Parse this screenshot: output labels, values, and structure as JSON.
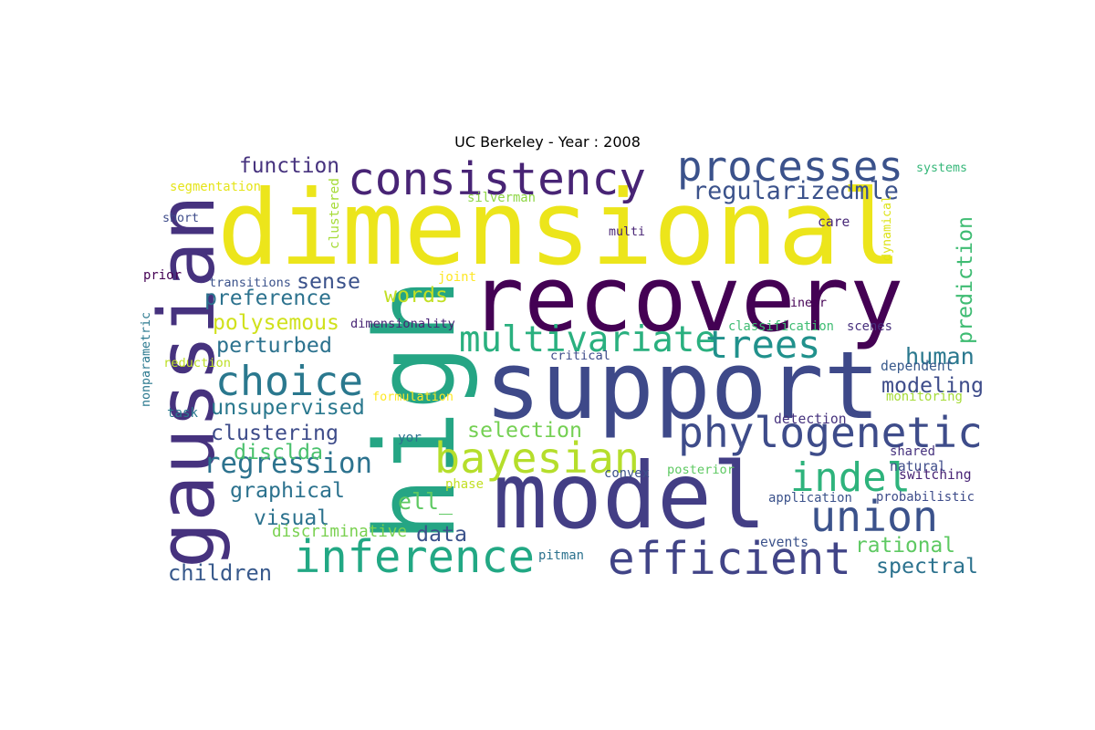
{
  "title": "UC Berkeley - Year : 2008",
  "colors": {
    "background": "#ffffff",
    "palette": [
      "#440154",
      "#3b528b",
      "#21918c",
      "#5ec962",
      "#fde725"
    ]
  },
  "words": [
    {
      "text": "dimensional",
      "color": "#ece51b"
    },
    {
      "text": "recovery",
      "color": "#440154"
    },
    {
      "text": "support",
      "color": "#3e4989"
    },
    {
      "text": "model",
      "color": "#433e85"
    },
    {
      "text": "high",
      "color": "#25a584"
    },
    {
      "text": "gaussian",
      "color": "#46327e"
    },
    {
      "text": "consistency",
      "color": "#482475"
    },
    {
      "text": "processes",
      "color": "#3b528b"
    },
    {
      "text": "efficient",
      "color": "#414487"
    },
    {
      "text": "inference",
      "color": "#22a884"
    },
    {
      "text": "phylogenetic",
      "color": "#3e4c8a"
    },
    {
      "text": "bayesian",
      "color": "#b5de2b"
    },
    {
      "text": "choice",
      "color": "#2a788e"
    },
    {
      "text": "union",
      "color": "#3b528b"
    },
    {
      "text": "multivariate",
      "color": "#2ab07f"
    },
    {
      "text": "trees",
      "color": "#21918c"
    },
    {
      "text": "indel",
      "color": "#2eb37c"
    },
    {
      "text": "regression",
      "color": "#2c728e"
    },
    {
      "text": "regularizedmle",
      "color": "#3b528b"
    },
    {
      "text": "function",
      "color": "#46327e"
    },
    {
      "text": "preference",
      "color": "#2c728e"
    },
    {
      "text": "unsupervised",
      "color": "#2a788e"
    },
    {
      "text": "clustering",
      "color": "#3e4c8a"
    },
    {
      "text": "perturbed",
      "color": "#2c728e"
    },
    {
      "text": "polysemous",
      "color": "#d0e11c"
    },
    {
      "text": "sense",
      "color": "#3b528b"
    },
    {
      "text": "words",
      "color": "#c2df23"
    },
    {
      "text": "human",
      "color": "#2a788e"
    },
    {
      "text": "modeling",
      "color": "#3e4c8a"
    },
    {
      "text": "rational",
      "color": "#5ec962"
    },
    {
      "text": "spectral",
      "color": "#2c728e"
    },
    {
      "text": "prediction",
      "color": "#3fbc73"
    },
    {
      "text": "selection",
      "color": "#75d054"
    },
    {
      "text": "graphical",
      "color": "#2c728e"
    },
    {
      "text": "children",
      "color": "#38598c"
    },
    {
      "text": "disclda",
      "color": "#4ac16d"
    },
    {
      "text": "visual",
      "color": "#2c728e"
    },
    {
      "text": "data",
      "color": "#3b528b"
    },
    {
      "text": "ell_",
      "color": "#5ec962"
    },
    {
      "text": "discriminative",
      "color": "#7ad151"
    },
    {
      "text": "segmentation",
      "color": "#e5e419"
    },
    {
      "text": "short",
      "color": "#3e4c8a"
    },
    {
      "text": "clustered",
      "color": "#a5db36"
    },
    {
      "text": "silverman",
      "color": "#8ed645"
    },
    {
      "text": "multi",
      "color": "#482475"
    },
    {
      "text": "care",
      "color": "#482878"
    },
    {
      "text": "dynamical",
      "color": "#dde318"
    },
    {
      "text": "systems",
      "color": "#35b779"
    },
    {
      "text": "prior",
      "color": "#440154"
    },
    {
      "text": "transitions",
      "color": "#3b528b"
    },
    {
      "text": "joint",
      "color": "#fde725"
    },
    {
      "text": "dimensionality",
      "color": "#482475"
    },
    {
      "text": "linear",
      "color": "#440154"
    },
    {
      "text": "classification",
      "color": "#3fbc73"
    },
    {
      "text": "scenes",
      "color": "#472f7d"
    },
    {
      "text": "nonparametric",
      "color": "#2a788e"
    },
    {
      "text": "reduction",
      "color": "#bddf26"
    },
    {
      "text": "critical",
      "color": "#3e4c8a"
    },
    {
      "text": "dependent",
      "color": "#38598c"
    },
    {
      "text": "formulation",
      "color": "#fde725"
    },
    {
      "text": "monitoring",
      "color": "#a5db36"
    },
    {
      "text": "task",
      "color": "#2a788e"
    },
    {
      "text": "detection",
      "color": "#46327e"
    },
    {
      "text": "yor",
      "color": "#2c728e"
    },
    {
      "text": "shared",
      "color": "#46327e"
    },
    {
      "text": "natural",
      "color": "#3e4c8a"
    },
    {
      "text": "phase",
      "color": "#c2df23"
    },
    {
      "text": "convex",
      "color": "#3b528b"
    },
    {
      "text": "posterior",
      "color": "#5ec962"
    },
    {
      "text": "switching",
      "color": "#482475"
    },
    {
      "text": "application",
      "color": "#3b528b"
    },
    {
      "text": "probabilistic",
      "color": "#3e4c8a"
    },
    {
      "text": "events",
      "color": "#3b528b"
    },
    {
      "text": "pitman",
      "color": "#2c728e"
    }
  ]
}
